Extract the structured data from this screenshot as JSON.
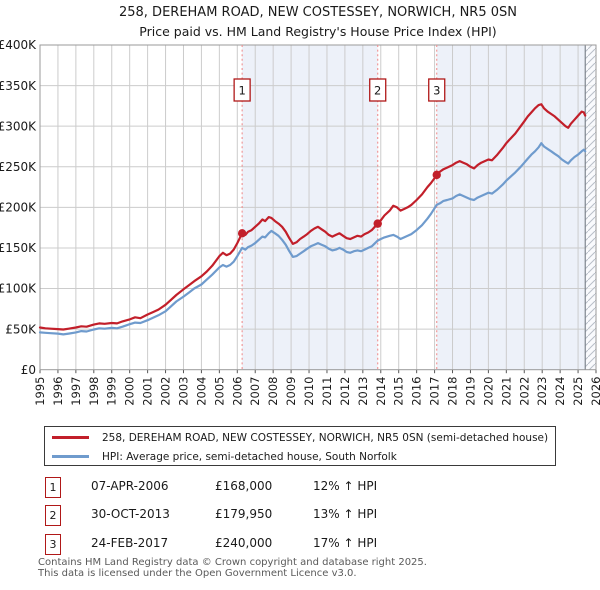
{
  "title": {
    "line1": "258, DEREHAM ROAD, NEW COSTESSEY, NORWICH, NR5 0SN",
    "line2": "Price paid vs. HM Land Registry's House Price Index (HPI)"
  },
  "legend": {
    "items": [
      {
        "label": "258, DEREHAM ROAD, NEW COSTESSEY, NORWICH, NR5 0SN (semi-detached house)",
        "color": "#c21f2a"
      },
      {
        "label": "HPI: Average price, semi-detached house, South Norfolk",
        "color": "#6f9bcd"
      }
    ]
  },
  "transactions": [
    {
      "id": "1",
      "date": "07-APR-2006",
      "price": "£168,000",
      "hpi_diff": "12% ↑ HPI"
    },
    {
      "id": "2",
      "date": "30-OCT-2013",
      "price": "£179,950",
      "hpi_diff": "13% ↑ HPI"
    },
    {
      "id": "3",
      "date": "24-FEB-2017",
      "price": "£240,000",
      "hpi_diff": "17% ↑ HPI"
    }
  ],
  "footer": {
    "line1": "Contains HM Land Registry data © Crown copyright and database right 2025.",
    "line2": "This data is licensed under the Open Government Licence v3.0."
  },
  "chart_data": {
    "type": "line",
    "title": "Price paid vs. HM Land Registry's House Price Index (HPI)",
    "xlabel": "",
    "ylabel": "",
    "units": "GBP thousands",
    "xlim": [
      1995,
      2026
    ],
    "ylim_thousands": [
      0,
      400
    ],
    "grid": true,
    "legend_position": "bottom",
    "x_ticks": [
      1995,
      1996,
      1997,
      1998,
      1999,
      2000,
      2001,
      2002,
      2003,
      2004,
      2005,
      2006,
      2007,
      2008,
      2009,
      2010,
      2011,
      2012,
      2013,
      2014,
      2015,
      2016,
      2017,
      2018,
      2019,
      2020,
      2021,
      2022,
      2023,
      2024,
      2025,
      2026
    ],
    "y_ticks": [
      {
        "label": "£400K",
        "value": 400
      },
      {
        "label": "£350K",
        "value": 350
      },
      {
        "label": "£300K",
        "value": 300
      },
      {
        "label": "£250K",
        "value": 250
      },
      {
        "label": "£200K",
        "value": 200
      },
      {
        "label": "£150K",
        "value": 150
      },
      {
        "label": "£100K",
        "value": 100
      },
      {
        "label": "£50K",
        "value": 50
      },
      {
        "label": "£0",
        "value": 0
      }
    ],
    "bands": [
      [
        2006.27,
        2013.83
      ],
      [
        2017.12,
        2026
      ]
    ],
    "hatch_future": [
      2025.4,
      2026
    ],
    "annotations": [
      {
        "label": "1",
        "x": 2006.27,
        "y": 168,
        "date": "07-APR-2006",
        "price_gbp": 168000
      },
      {
        "label": "2",
        "x": 2013.83,
        "y": 179.95,
        "date": "30-OCT-2013",
        "price_gbp": 179950
      },
      {
        "label": "3",
        "x": 2017.12,
        "y": 240,
        "date": "24-FEB-2017",
        "price_gbp": 240000
      }
    ],
    "series": [
      {
        "name": "258, DEREHAM ROAD, NEW COSTESSEY, NORWICH, NR5 0SN (semi-detached house)",
        "color": "#c21f2a",
        "width": 2.2,
        "points": [
          [
            1995.0,
            52
          ],
          [
            1995.3,
            51
          ],
          [
            1995.6,
            50.5
          ],
          [
            1996.0,
            50
          ],
          [
            1996.3,
            49.5
          ],
          [
            1996.6,
            50.5
          ],
          [
            1997.0,
            52
          ],
          [
            1997.3,
            53.5
          ],
          [
            1997.6,
            53
          ],
          [
            1998.0,
            55.5
          ],
          [
            1998.3,
            57
          ],
          [
            1998.6,
            56.5
          ],
          [
            1999.0,
            57.5
          ],
          [
            1999.3,
            57
          ],
          [
            1999.6,
            59.5
          ],
          [
            2000.0,
            62
          ],
          [
            2000.3,
            64.5
          ],
          [
            2000.6,
            63.5
          ],
          [
            2001.0,
            68
          ],
          [
            2001.3,
            71
          ],
          [
            2001.6,
            74
          ],
          [
            2002.0,
            80
          ],
          [
            2002.3,
            86
          ],
          [
            2002.6,
            92
          ],
          [
            2003.0,
            99
          ],
          [
            2003.3,
            104
          ],
          [
            2003.6,
            109
          ],
          [
            2004.0,
            115
          ],
          [
            2004.3,
            121
          ],
          [
            2004.6,
            128
          ],
          [
            2005.0,
            140
          ],
          [
            2005.2,
            144
          ],
          [
            2005.4,
            141
          ],
          [
            2005.6,
            143
          ],
          [
            2005.8,
            148
          ],
          [
            2006.0,
            156
          ],
          [
            2006.27,
            168
          ],
          [
            2006.45,
            166
          ],
          [
            2006.6,
            170
          ],
          [
            2006.8,
            172
          ],
          [
            2007.0,
            176
          ],
          [
            2007.2,
            180
          ],
          [
            2007.4,
            185
          ],
          [
            2007.55,
            183
          ],
          [
            2007.75,
            188
          ],
          [
            2007.9,
            187
          ],
          [
            2008.1,
            183
          ],
          [
            2008.3,
            180
          ],
          [
            2008.5,
            176
          ],
          [
            2008.7,
            170
          ],
          [
            2008.9,
            162
          ],
          [
            2009.1,
            155
          ],
          [
            2009.3,
            157
          ],
          [
            2009.5,
            161
          ],
          [
            2009.7,
            164
          ],
          [
            2009.9,
            167
          ],
          [
            2010.1,
            171
          ],
          [
            2010.3,
            174
          ],
          [
            2010.5,
            176
          ],
          [
            2010.7,
            173
          ],
          [
            2010.9,
            170
          ],
          [
            2011.1,
            166
          ],
          [
            2011.3,
            164
          ],
          [
            2011.5,
            166
          ],
          [
            2011.7,
            168
          ],
          [
            2011.9,
            165
          ],
          [
            2012.1,
            162
          ],
          [
            2012.3,
            161
          ],
          [
            2012.5,
            163
          ],
          [
            2012.7,
            165
          ],
          [
            2012.9,
            164
          ],
          [
            2013.1,
            167
          ],
          [
            2013.3,
            169
          ],
          [
            2013.5,
            172
          ],
          [
            2013.83,
            180
          ],
          [
            2014.0,
            184
          ],
          [
            2014.2,
            190
          ],
          [
            2014.5,
            196
          ],
          [
            2014.7,
            202
          ],
          [
            2014.9,
            200
          ],
          [
            2015.1,
            196
          ],
          [
            2015.3,
            198
          ],
          [
            2015.5,
            200
          ],
          [
            2015.7,
            203
          ],
          [
            2016.0,
            209
          ],
          [
            2016.3,
            216
          ],
          [
            2016.6,
            225
          ],
          [
            2016.8,
            230
          ],
          [
            2017.0,
            236
          ],
          [
            2017.12,
            240
          ],
          [
            2017.3,
            244
          ],
          [
            2017.5,
            247
          ],
          [
            2017.7,
            249
          ],
          [
            2018.0,
            252
          ],
          [
            2018.2,
            255
          ],
          [
            2018.4,
            257
          ],
          [
            2018.6,
            255
          ],
          [
            2018.8,
            253
          ],
          [
            2019.0,
            250
          ],
          [
            2019.2,
            248
          ],
          [
            2019.4,
            252
          ],
          [
            2019.6,
            255
          ],
          [
            2019.8,
            257
          ],
          [
            2020.0,
            259
          ],
          [
            2020.2,
            258
          ],
          [
            2020.5,
            265
          ],
          [
            2020.8,
            273
          ],
          [
            2021.0,
            279
          ],
          [
            2021.2,
            284
          ],
          [
            2021.5,
            291
          ],
          [
            2021.8,
            300
          ],
          [
            2022.0,
            306
          ],
          [
            2022.2,
            312
          ],
          [
            2022.4,
            317
          ],
          [
            2022.6,
            322
          ],
          [
            2022.8,
            326
          ],
          [
            2022.95,
            327
          ],
          [
            2023.1,
            322
          ],
          [
            2023.3,
            318
          ],
          [
            2023.5,
            315
          ],
          [
            2023.7,
            312
          ],
          [
            2023.9,
            308
          ],
          [
            2024.1,
            304
          ],
          [
            2024.3,
            300
          ],
          [
            2024.45,
            298
          ],
          [
            2024.6,
            303
          ],
          [
            2024.8,
            308
          ],
          [
            2025.0,
            313
          ],
          [
            2025.2,
            318
          ],
          [
            2025.32,
            317
          ],
          [
            2025.4,
            313
          ]
        ]
      },
      {
        "name": "HPI: Average price, semi-detached house, South Norfolk",
        "color": "#6f9bcd",
        "width": 2.2,
        "points": [
          [
            1995.0,
            46
          ],
          [
            1995.3,
            45.5
          ],
          [
            1995.6,
            45
          ],
          [
            1996.0,
            44.5
          ],
          [
            1996.3,
            43.5
          ],
          [
            1996.6,
            44.5
          ],
          [
            1997.0,
            46
          ],
          [
            1997.3,
            47.5
          ],
          [
            1997.6,
            47
          ],
          [
            1998.0,
            49.5
          ],
          [
            1998.3,
            51
          ],
          [
            1998.6,
            50.5
          ],
          [
            1999.0,
            51.5
          ],
          [
            1999.3,
            51
          ],
          [
            1999.6,
            53
          ],
          [
            2000.0,
            56
          ],
          [
            2000.3,
            58
          ],
          [
            2000.6,
            57.5
          ],
          [
            2001.0,
            61
          ],
          [
            2001.3,
            64
          ],
          [
            2001.6,
            67
          ],
          [
            2002.0,
            72
          ],
          [
            2002.3,
            78
          ],
          [
            2002.6,
            84
          ],
          [
            2003.0,
            90
          ],
          [
            2003.3,
            95
          ],
          [
            2003.6,
            100
          ],
          [
            2004.0,
            105
          ],
          [
            2004.3,
            111
          ],
          [
            2004.6,
            117
          ],
          [
            2005.0,
            126
          ],
          [
            2005.2,
            129
          ],
          [
            2005.4,
            127
          ],
          [
            2005.6,
            129
          ],
          [
            2005.8,
            133
          ],
          [
            2006.0,
            140
          ],
          [
            2006.27,
            150
          ],
          [
            2006.45,
            148
          ],
          [
            2006.6,
            151
          ],
          [
            2006.8,
            153
          ],
          [
            2007.0,
            156
          ],
          [
            2007.2,
            160
          ],
          [
            2007.4,
            164
          ],
          [
            2007.55,
            163
          ],
          [
            2007.75,
            168
          ],
          [
            2007.9,
            171
          ],
          [
            2008.1,
            168
          ],
          [
            2008.3,
            165
          ],
          [
            2008.5,
            160
          ],
          [
            2008.7,
            154
          ],
          [
            2008.9,
            146
          ],
          [
            2009.1,
            139
          ],
          [
            2009.3,
            140
          ],
          [
            2009.5,
            143
          ],
          [
            2009.7,
            146
          ],
          [
            2009.9,
            149
          ],
          [
            2010.1,
            152
          ],
          [
            2010.3,
            154
          ],
          [
            2010.5,
            156
          ],
          [
            2010.7,
            154
          ],
          [
            2010.9,
            152
          ],
          [
            2011.1,
            149
          ],
          [
            2011.3,
            147
          ],
          [
            2011.5,
            148
          ],
          [
            2011.7,
            150
          ],
          [
            2011.9,
            148
          ],
          [
            2012.1,
            145
          ],
          [
            2012.3,
            144
          ],
          [
            2012.5,
            146
          ],
          [
            2012.7,
            147
          ],
          [
            2012.9,
            146
          ],
          [
            2013.1,
            148
          ],
          [
            2013.3,
            150
          ],
          [
            2013.5,
            152
          ],
          [
            2013.83,
            159
          ],
          [
            2014.0,
            161
          ],
          [
            2014.2,
            163
          ],
          [
            2014.5,
            165
          ],
          [
            2014.7,
            166
          ],
          [
            2014.9,
            164
          ],
          [
            2015.1,
            161
          ],
          [
            2015.3,
            163
          ],
          [
            2015.5,
            165
          ],
          [
            2015.7,
            167
          ],
          [
            2016.0,
            172
          ],
          [
            2016.3,
            178
          ],
          [
            2016.6,
            186
          ],
          [
            2016.8,
            192
          ],
          [
            2017.0,
            199
          ],
          [
            2017.12,
            203
          ],
          [
            2017.3,
            205
          ],
          [
            2017.5,
            208
          ],
          [
            2017.7,
            209
          ],
          [
            2018.0,
            211
          ],
          [
            2018.2,
            214
          ],
          [
            2018.4,
            216
          ],
          [
            2018.6,
            214
          ],
          [
            2018.8,
            212
          ],
          [
            2019.0,
            210
          ],
          [
            2019.2,
            209
          ],
          [
            2019.4,
            212
          ],
          [
            2019.6,
            214
          ],
          [
            2019.8,
            216
          ],
          [
            2020.0,
            218
          ],
          [
            2020.2,
            217
          ],
          [
            2020.5,
            222
          ],
          [
            2020.8,
            228
          ],
          [
            2021.0,
            233
          ],
          [
            2021.2,
            237
          ],
          [
            2021.5,
            243
          ],
          [
            2021.8,
            250
          ],
          [
            2022.0,
            255
          ],
          [
            2022.2,
            260
          ],
          [
            2022.4,
            265
          ],
          [
            2022.6,
            269
          ],
          [
            2022.8,
            274
          ],
          [
            2022.95,
            279
          ],
          [
            2023.1,
            275
          ],
          [
            2023.3,
            272
          ],
          [
            2023.5,
            269
          ],
          [
            2023.7,
            266
          ],
          [
            2023.9,
            263
          ],
          [
            2024.1,
            259
          ],
          [
            2024.3,
            256
          ],
          [
            2024.45,
            254
          ],
          [
            2024.6,
            258
          ],
          [
            2024.8,
            262
          ],
          [
            2025.0,
            265
          ],
          [
            2025.2,
            269
          ],
          [
            2025.32,
            271
          ],
          [
            2025.4,
            269
          ]
        ]
      }
    ],
    "style": {
      "band_fill": "#edf1f9",
      "grid": "#cccccc",
      "border": "#9a9a9a",
      "dashed_marker": "#f09090",
      "hatch_line": "#b8bec8",
      "hatch_edge": "#7e848d",
      "box_border": "#b01818",
      "tick": "#555555",
      "text": "#1a1a1a"
    }
  }
}
